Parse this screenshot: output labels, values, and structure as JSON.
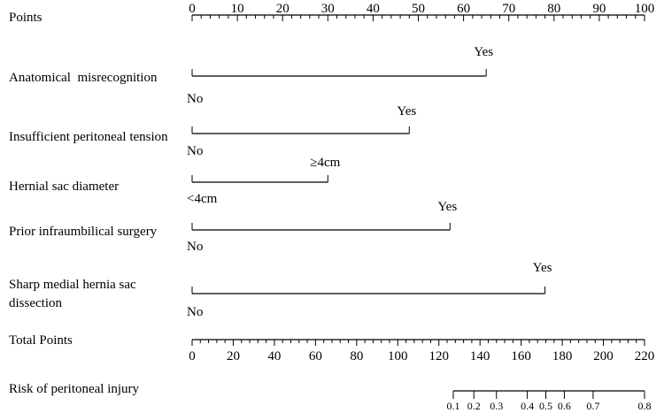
{
  "chart_data": {
    "type": "nomogram",
    "points_axis": {
      "label": "Points",
      "range": [
        0,
        100
      ],
      "major_ticks": [
        0,
        10,
        20,
        30,
        40,
        50,
        60,
        70,
        80,
        90,
        100
      ],
      "minor_step": 2
    },
    "variables": [
      {
        "name": "Anatomical  misrecognition",
        "levels": [
          {
            "label": "No",
            "points": 0
          },
          {
            "label": "Yes",
            "points": 65
          }
        ]
      },
      {
        "name": "Insufficient peritoneal tension",
        "levels": [
          {
            "label": "No",
            "points": 0
          },
          {
            "label": "Yes",
            "points": 48
          }
        ]
      },
      {
        "name": "Hernial sac diameter",
        "levels": [
          {
            "label": "<4cm",
            "points": 0
          },
          {
            "label": "≥4cm",
            "points": 30
          }
        ]
      },
      {
        "name": "Prior infraumbilical surgery",
        "levels": [
          {
            "label": "No",
            "points": 0
          },
          {
            "label": "Yes",
            "points": 57
          }
        ]
      },
      {
        "name": "Sharp medial hernia sac",
        "name_line2": "dissection",
        "levels": [
          {
            "label": "No",
            "points": 0
          },
          {
            "label": "Yes",
            "points": 78
          }
        ]
      }
    ],
    "total_points_axis": {
      "label": "Total Points",
      "range": [
        0,
        220
      ],
      "major_ticks": [
        0,
        20,
        40,
        60,
        80,
        100,
        120,
        140,
        160,
        180,
        200,
        220
      ],
      "minor_step": 4
    },
    "risk_axis": {
      "label": "Risk of peritoneal injury",
      "ticks": [
        {
          "label": "0.1",
          "total_points": 127
        },
        {
          "label": "0.2",
          "total_points": 137
        },
        {
          "label": "0.3",
          "total_points": 148
        },
        {
          "label": "0.4",
          "total_points": 163
        },
        {
          "label": "0.5",
          "total_points": 172
        },
        {
          "label": "0.6",
          "total_points": 181
        },
        {
          "label": "0.7",
          "total_points": 195
        },
        {
          "label": "0.8",
          "total_points": 220
        }
      ]
    }
  }
}
